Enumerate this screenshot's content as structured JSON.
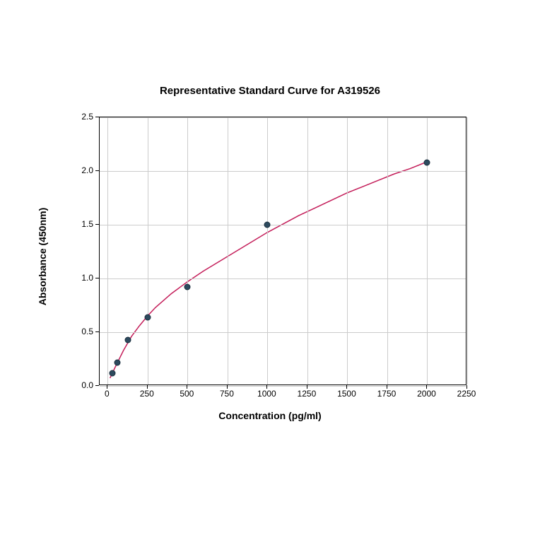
{
  "chart": {
    "type": "scatter-with-curve",
    "title": "Representative Standard Curve for A319526",
    "title_fontsize": 15,
    "title_fontweight": "bold",
    "xlabel": "Concentration (pg/ml)",
    "ylabel": "Absorbance (450nm)",
    "label_fontsize": 14,
    "label_fontweight": "bold",
    "xlim": [
      -50,
      2250
    ],
    "ylim": [
      0.0,
      2.5
    ],
    "xticks": [
      0,
      250,
      500,
      750,
      1000,
      1250,
      1500,
      1750,
      2000,
      2250
    ],
    "yticks": [
      0.0,
      0.5,
      1.0,
      1.5,
      2.0,
      2.5
    ],
    "tick_fontsize": 12,
    "background_color": "#ffffff",
    "grid_color": "#cccccc",
    "grid_on": true,
    "border_color": "#000000",
    "data_points": [
      {
        "x": 31.25,
        "y": 0.12
      },
      {
        "x": 62.5,
        "y": 0.22
      },
      {
        "x": 125,
        "y": 0.43
      },
      {
        "x": 250,
        "y": 0.64
      },
      {
        "x": 500,
        "y": 0.92
      },
      {
        "x": 1000,
        "y": 1.5
      },
      {
        "x": 2000,
        "y": 2.08
      }
    ],
    "marker_style": "circle",
    "marker_size": 9,
    "marker_fill_color": "#2d4a5e",
    "marker_edge_color": "#1a2e3d",
    "curve_color": "#c41e5a",
    "curve_width": 1.5,
    "curve_points": [
      {
        "x": 15,
        "y": 0.06
      },
      {
        "x": 50,
        "y": 0.17
      },
      {
        "x": 100,
        "y": 0.32
      },
      {
        "x": 150,
        "y": 0.45
      },
      {
        "x": 200,
        "y": 0.55
      },
      {
        "x": 250,
        "y": 0.64
      },
      {
        "x": 300,
        "y": 0.72
      },
      {
        "x": 400,
        "y": 0.85
      },
      {
        "x": 500,
        "y": 0.96
      },
      {
        "x": 600,
        "y": 1.06
      },
      {
        "x": 700,
        "y": 1.15
      },
      {
        "x": 800,
        "y": 1.24
      },
      {
        "x": 900,
        "y": 1.33
      },
      {
        "x": 1000,
        "y": 1.42
      },
      {
        "x": 1100,
        "y": 1.5
      },
      {
        "x": 1200,
        "y": 1.58
      },
      {
        "x": 1300,
        "y": 1.65
      },
      {
        "x": 1400,
        "y": 1.72
      },
      {
        "x": 1500,
        "y": 1.79
      },
      {
        "x": 1600,
        "y": 1.85
      },
      {
        "x": 1700,
        "y": 1.91
      },
      {
        "x": 1800,
        "y": 1.97
      },
      {
        "x": 1900,
        "y": 2.02
      },
      {
        "x": 2000,
        "y": 2.08
      }
    ]
  }
}
